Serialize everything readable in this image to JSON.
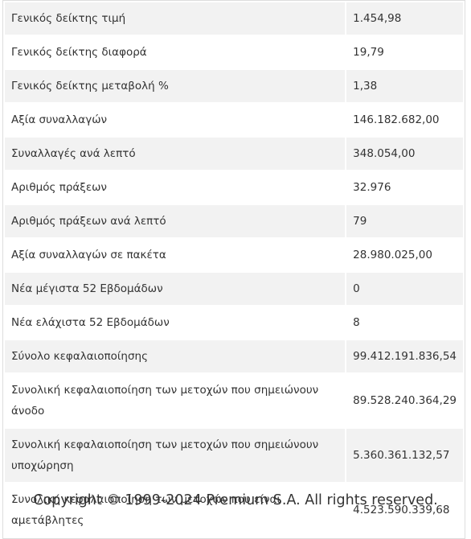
{
  "table": {
    "rows": [
      [
        "Γενικός δείκτης τιμή",
        "1.454,98"
      ],
      [
        "Γενικός δείκτης διαφορά",
        "19,79"
      ],
      [
        "Γενικός δείκτης μεταβολή %",
        "1,38"
      ],
      [
        "Αξία συναλλαγών",
        "146.182.682,00"
      ],
      [
        "Συναλλαγές ανά λεπτό",
        "348.054,00"
      ],
      [
        "Αριθμός πράξεων",
        "32.976"
      ],
      [
        "Αριθμός πράξεων ανά λεπτό",
        "79"
      ],
      [
        "Αξία συναλλαγών σε πακέτα",
        "28.980.025,00"
      ],
      [
        "Νέα μέγιστα 52 Εβδομάδων",
        "0"
      ],
      [
        "Νέα ελάχιστα 52 Εβδομάδων",
        "8"
      ],
      [
        "Σύνολο κεφαλαιοποίησης",
        "99.412.191.836,54"
      ],
      [
        "Συνολική κεφαλαιοποίηση των μετοχών που σημειώνουν άνοδο",
        "89.528.240.364,29"
      ],
      [
        "Συνολική κεφαλαιοποίηση των μετοχών που σημειώνουν υποχώρηση",
        "5.360.361.132,57"
      ],
      [
        "Συνολική κεφαλαιοποίηση των μετοχών που είναι αμετάβλητες",
        "4.523.590.339,68"
      ]
    ]
  },
  "footer": {
    "copyright": "Copyright © 1999-2024 Premium S.A. All rights reserved."
  }
}
